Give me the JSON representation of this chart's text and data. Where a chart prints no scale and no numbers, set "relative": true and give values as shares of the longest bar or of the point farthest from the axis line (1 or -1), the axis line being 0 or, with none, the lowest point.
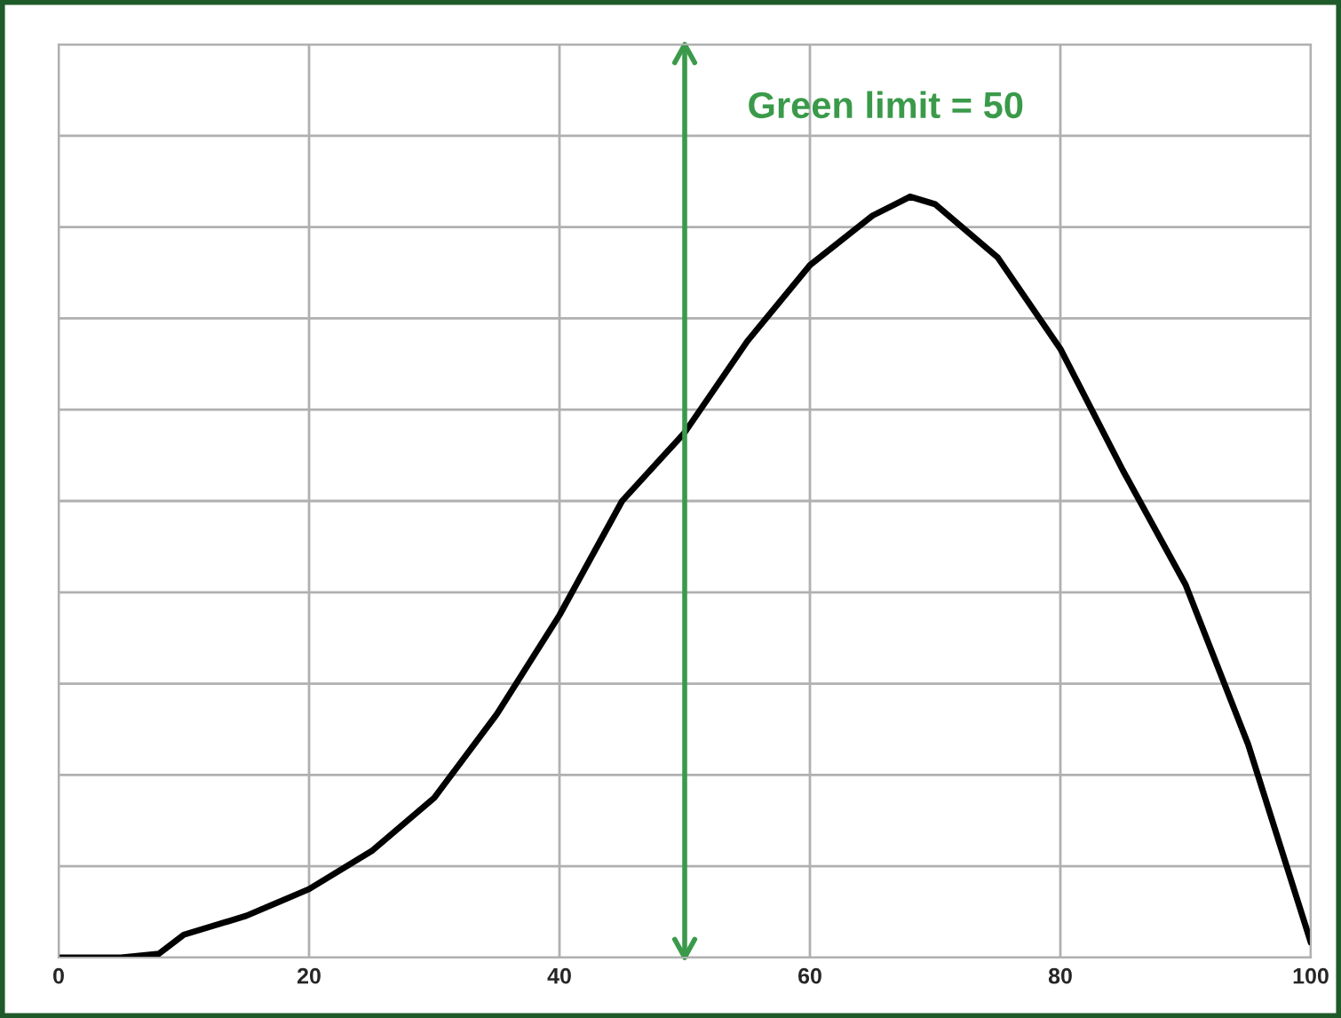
{
  "chart_data": {
    "type": "line",
    "relative": true,
    "grid": true,
    "marker": "none",
    "line_style": "solid",
    "x": [
      0,
      5,
      8,
      10,
      15,
      20,
      25,
      30,
      35,
      40,
      45,
      50,
      55,
      60,
      65,
      68,
      70,
      75,
      80,
      85,
      90,
      95,
      100
    ],
    "xlim": [
      0,
      100
    ],
    "xticks": [
      0,
      20,
      40,
      60,
      80,
      100
    ],
    "series": [
      {
        "color": "#000000",
        "values": [
          0,
          0,
          0.005,
          0.03,
          0.055,
          0.09,
          0.14,
          0.21,
          0.32,
          0.45,
          0.6,
          0.69,
          0.81,
          0.91,
          0.975,
          1.0,
          0.99,
          0.92,
          0.8,
          0.64,
          0.49,
          0.28,
          0.02
        ]
      }
    ],
    "ref_lines": [
      {
        "axis": "x",
        "value": 50,
        "label": "Green limit = 50",
        "color": "#3a9a4a"
      }
    ]
  }
}
